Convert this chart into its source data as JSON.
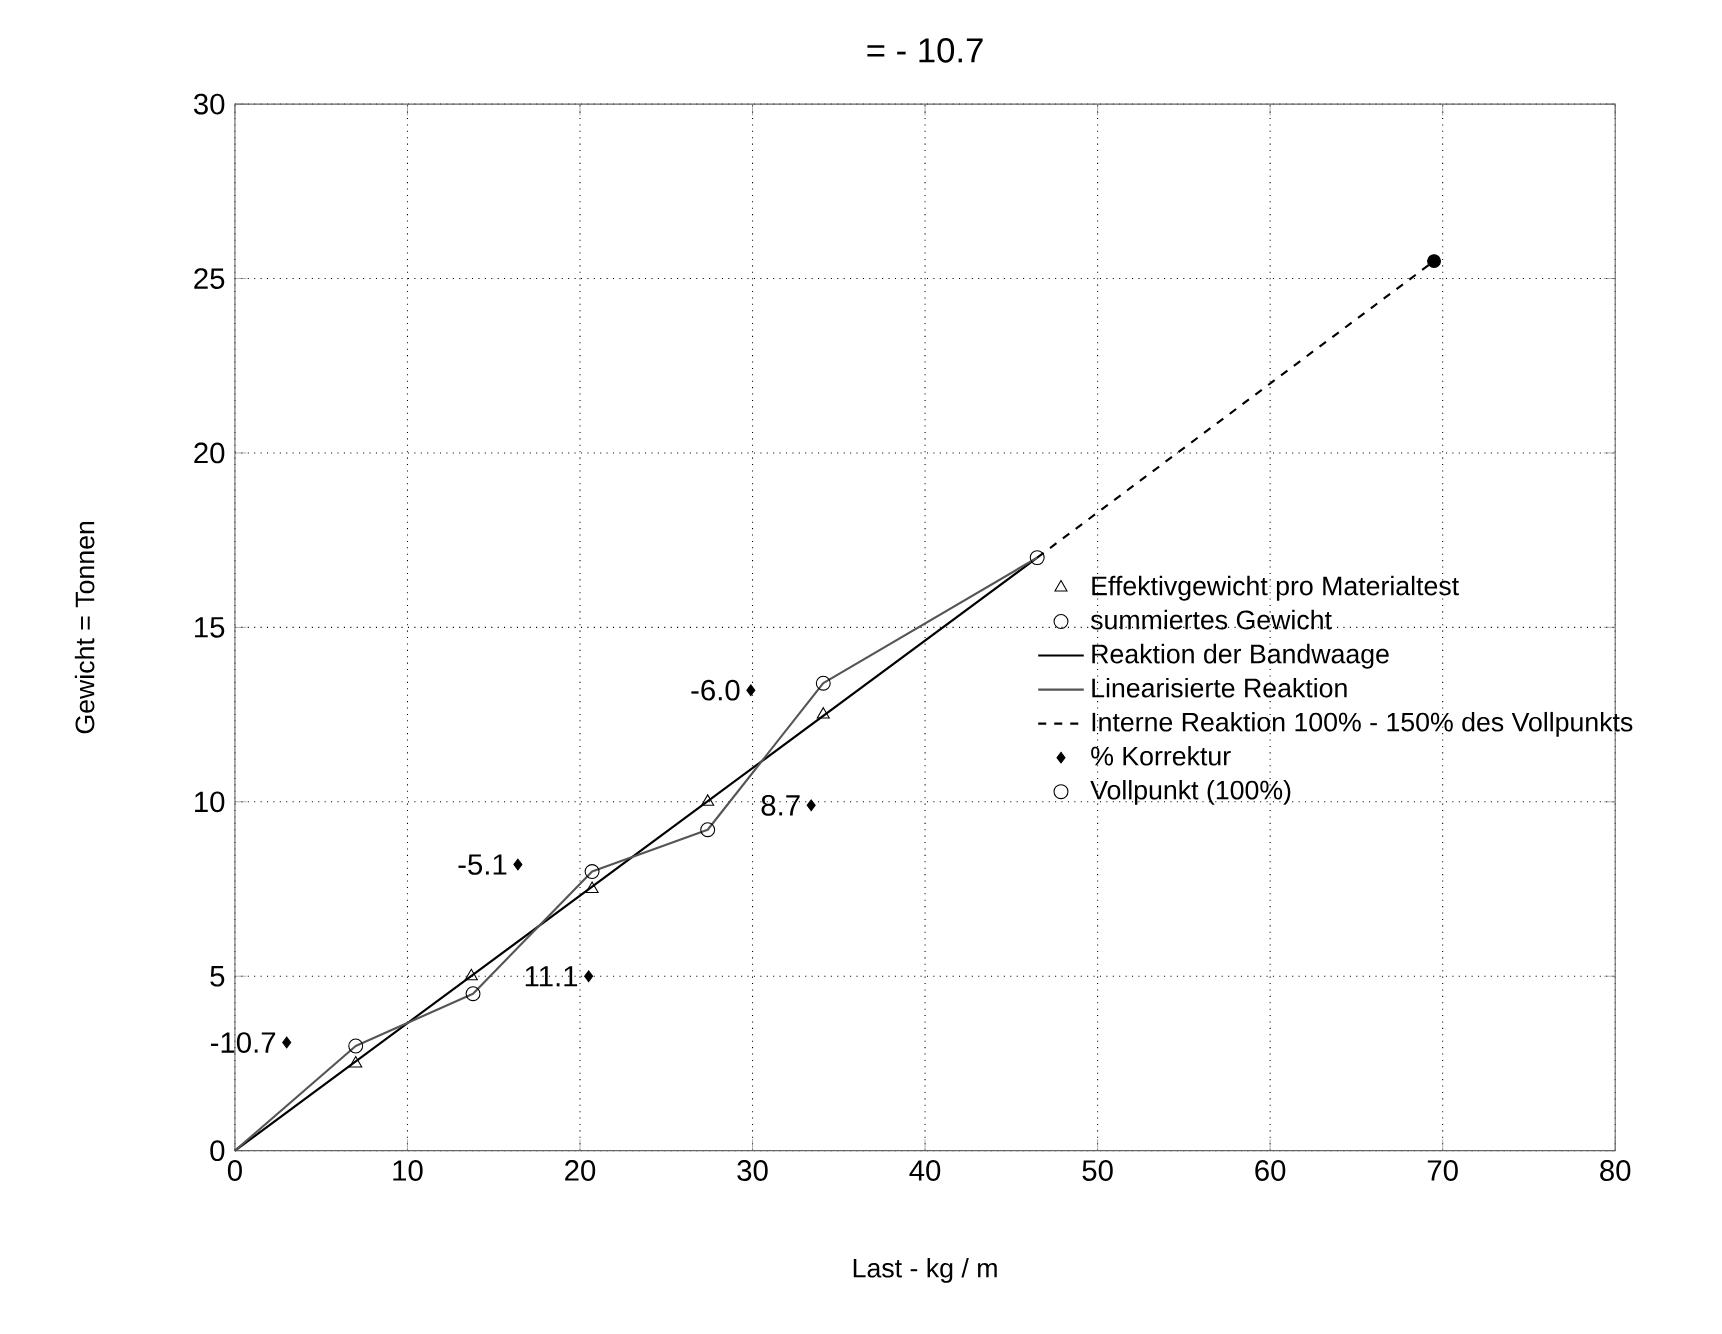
{
  "chart_data": {
    "type": "line",
    "title": "= - 10.7",
    "xlabel": "Last - kg / m",
    "ylabel": "Gewicht = Tonnen",
    "xlim": [
      0,
      80
    ],
    "xticks": [
      0,
      10,
      20,
      30,
      40,
      50,
      60,
      70,
      80
    ],
    "ylim": [
      0,
      30
    ],
    "yticks": [
      0,
      5,
      10,
      15,
      20,
      25,
      30
    ],
    "grid": true,
    "legend": "right",
    "series": [
      {
        "name": "Effektivgewicht pro Materialtest",
        "type": "scatter",
        "marker": "triangle",
        "color": "#000000",
        "x": [
          7.0,
          13.7,
          20.7,
          27.4,
          34.1
        ],
        "values": [
          2.5,
          5.0,
          7.5,
          10.0,
          12.5
        ]
      },
      {
        "name": "summiertes Gewicht",
        "type": "scatter",
        "marker": "circle",
        "color": "#000000",
        "x": [
          7.0,
          13.8,
          20.7,
          27.4,
          34.1
        ],
        "values": [
          3.0,
          4.5,
          8.0,
          9.2,
          13.4
        ]
      },
      {
        "name": "Reaktion der Bandwaage",
        "marker": "none",
        "line_style": "solid",
        "color": "#000000",
        "x": [
          0,
          46.5
        ],
        "values": [
          0,
          17.0
        ]
      },
      {
        "name": "Linearisierte Reaktion",
        "marker": "none",
        "line_style": "solid",
        "color": "#555555",
        "x": [
          0,
          7.0,
          13.8,
          20.7,
          27.4,
          34.1,
          46.5
        ],
        "values": [
          0,
          3.0,
          4.5,
          8.0,
          9.2,
          13.4,
          17.0
        ]
      },
      {
        "name": "Interne Reaktion 100% - 150% des Vollpunkts",
        "marker": "none",
        "line_style": "dashed",
        "color": "#000000",
        "x": [
          46.5,
          69.5
        ],
        "values": [
          17.0,
          25.5
        ]
      },
      {
        "name": "% Korrektur",
        "type": "scatter",
        "marker": "diamond",
        "color": "#000000",
        "x": [
          3.0,
          20.5,
          16.4,
          33.4,
          29.9
        ],
        "values": [
          3.1,
          5.0,
          8.2,
          9.9,
          13.2
        ]
      },
      {
        "name": "Vollpunkt (100%)",
        "type": "scatter",
        "marker": "circle",
        "color": "#000000",
        "x": [
          46.5
        ],
        "values": [
          17.0
        ]
      },
      {
        "type": "scatter",
        "color": "#000000",
        "x": [
          69.5
        ],
        "values": [
          25.5
        ]
      }
    ],
    "annotations": [
      {
        "text": "-10.7",
        "x": 2.6,
        "y": 3.1
      },
      {
        "text": "11.1",
        "x": 20.1,
        "y": 5.0
      },
      {
        "text": "-5.1",
        "x": 16.0,
        "y": 8.2
      },
      {
        "text": "8.7",
        "x": 33.0,
        "y": 9.9
      },
      {
        "text": "-6.0",
        "x": 29.5,
        "y": 13.2
      }
    ]
  }
}
